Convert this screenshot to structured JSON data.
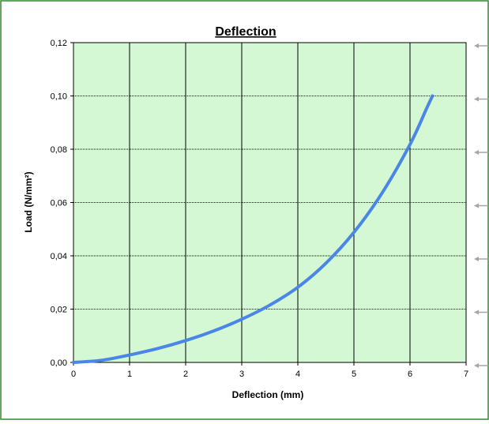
{
  "chart_data": {
    "type": "line",
    "title": "Deflection",
    "xlabel": "Deflection (mm)",
    "ylabel": "Load (N/mm²)",
    "xlim": [
      0,
      7
    ],
    "ylim": [
      0,
      0.12
    ],
    "x_ticks": [
      "0",
      "1",
      "2",
      "3",
      "4",
      "5",
      "6",
      "7"
    ],
    "y_ticks": [
      "0,00",
      "0,02",
      "0,04",
      "0,06",
      "0,08",
      "0,10",
      "0,12"
    ],
    "grid": true,
    "legend": "right",
    "series": [
      {
        "x": [
          0,
          0.5,
          1.0,
          1.5,
          2.0,
          2.5,
          3.0,
          3.5,
          4.0,
          4.5,
          5.0,
          5.5,
          6.0,
          6.3,
          6.4
        ],
        "y": [
          0,
          0.0008,
          0.0028,
          0.0052,
          0.0082,
          0.0118,
          0.0162,
          0.0215,
          0.0282,
          0.0372,
          0.0488,
          0.0635,
          0.0818,
          0.0955,
          0.1
        ]
      }
    ],
    "colors": {
      "frame_border": "#2e8b2e",
      "plot_bg": "#d4f8d4",
      "line": "#4a86e8",
      "grid": "#000000",
      "legend_marker": "#a6a6a6"
    }
  }
}
